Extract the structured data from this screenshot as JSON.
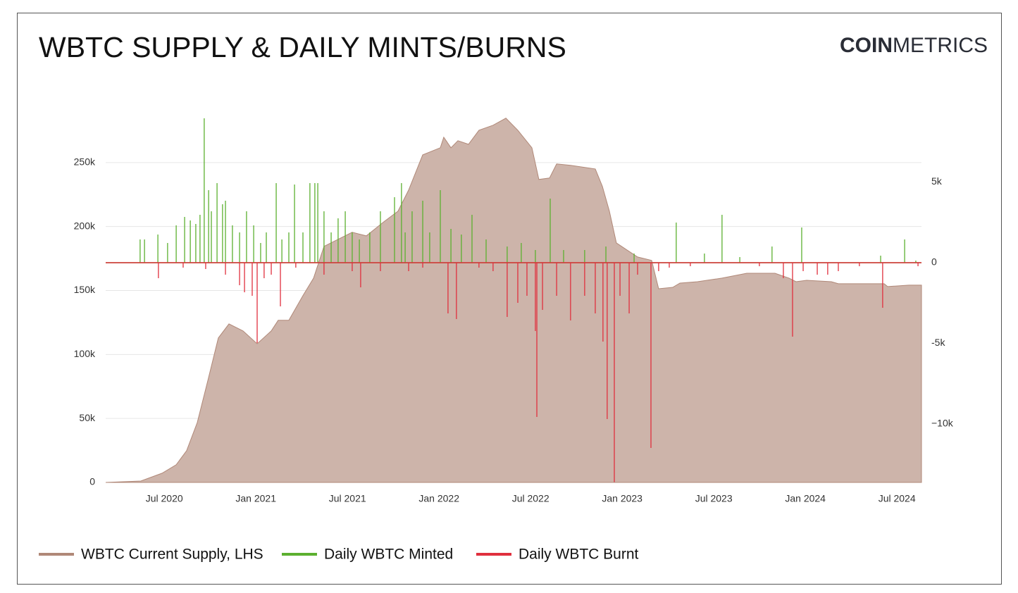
{
  "chart_data": {
    "type": "combo",
    "title": "WBTC SUPPLY & DAILY MINTS/BURNS",
    "logo": {
      "bold": "COIN",
      "light": "METRICS"
    },
    "xlim": [
      2020.18,
      2024.634
    ],
    "xticks": [
      {
        "value": 2020.5,
        "label": "Jul 2020"
      },
      {
        "value": 2021.0,
        "label": "Jan 2021"
      },
      {
        "value": 2021.5,
        "label": "Jul 2021"
      },
      {
        "value": 2022.0,
        "label": "Jan 2022"
      },
      {
        "value": 2022.5,
        "label": "Jul 2022"
      },
      {
        "value": 2023.0,
        "label": "Jan 2023"
      },
      {
        "value": 2023.5,
        "label": "Jul 2023"
      },
      {
        "value": 2024.0,
        "label": "Jan 2024"
      },
      {
        "value": 2024.5,
        "label": "Jul 2024"
      }
    ],
    "ylim": [
      0,
      300000
    ],
    "yticks": [
      0,
      {
        "value": 50000,
        "label": "50k"
      },
      {
        "value": 100000,
        "label": "100k"
      },
      {
        "value": 150000,
        "label": "150k"
      },
      {
        "value": 200000,
        "label": "200k"
      },
      {
        "value": 250000,
        "label": "250k"
      }
    ],
    "y2lim": [
      -13624,
      10175
    ],
    "y2ticks": [
      {
        "value": -10000,
        "label": "−10k"
      },
      {
        "value": -5000,
        "label": "-5k"
      },
      0,
      {
        "value": 5000,
        "label": "5k"
      }
    ],
    "grid": true,
    "series": [
      {
        "name": "WBTC Current Supply, LHS",
        "type": "area",
        "color": "#b08878",
        "fill": "#cdb4aa",
        "axis": "y",
        "x": [
          2020.18,
          2020.372,
          2020.488,
          2020.565,
          2020.622,
          2020.68,
          2020.738,
          2020.795,
          2020.853,
          2020.93,
          2021.007,
          2021.084,
          2021.122,
          2021.18,
          2021.257,
          2021.315,
          2021.372,
          2021.449,
          2021.526,
          2021.603,
          2021.699,
          2021.776,
          2021.834,
          2021.911,
          2022.007,
          2022.026,
          2022.065,
          2022.103,
          2022.161,
          2022.218,
          2022.295,
          2022.365,
          2022.43,
          2022.507,
          2022.545,
          2022.603,
          2022.642,
          2022.718,
          2022.853,
          2022.892,
          2022.93,
          2022.968,
          2023.026,
          2023.084,
          2023.161,
          2023.199,
          2023.276,
          2023.315,
          2023.411,
          2023.545,
          2023.68,
          2023.834,
          2023.911,
          2023.949,
          2024.007,
          2024.142,
          2024.18,
          2024.43,
          2024.449,
          2024.565,
          2024.634
        ],
        "values": [
          0,
          1100,
          7200,
          13800,
          24800,
          46800,
          79800,
          112900,
          123900,
          118400,
          108400,
          118400,
          126700,
          126700,
          146000,
          159700,
          184500,
          190000,
          195500,
          192700,
          203700,
          212000,
          228500,
          256000,
          261600,
          269800,
          261600,
          267100,
          264300,
          275300,
          279200,
          284700,
          275300,
          261600,
          236800,
          237900,
          248900,
          247800,
          245000,
          231300,
          212000,
          187200,
          181700,
          176200,
          173500,
          151400,
          152500,
          155800,
          156900,
          159700,
          163500,
          163500,
          159700,
          156900,
          158000,
          156900,
          155300,
          155300,
          153100,
          154200,
          154200
        ]
      },
      {
        "name": "Daily WBTC Minted",
        "type": "stem",
        "color": "#5cb030",
        "axis": "y2",
        "x": [
          2020.368,
          2020.392,
          2020.465,
          2020.518,
          2020.565,
          2020.611,
          2020.642,
          2020.672,
          2020.695,
          2020.718,
          2020.742,
          2020.757,
          2020.788,
          2020.818,
          2020.834,
          2020.872,
          2020.911,
          2020.949,
          2020.988,
          2021.026,
          2021.057,
          2021.111,
          2021.142,
          2021.18,
          2021.211,
          2021.257,
          2021.295,
          2021.322,
          2021.338,
          2021.372,
          2021.411,
          2021.449,
          2021.488,
          2021.526,
          2021.565,
          2021.622,
          2021.68,
          2021.757,
          2021.795,
          2021.815,
          2021.853,
          2021.911,
          2021.949,
          2022.007,
          2022.065,
          2022.122,
          2022.18,
          2022.257,
          2022.372,
          2022.449,
          2022.526,
          2022.607,
          2022.68,
          2022.795,
          2022.911,
          2023.065,
          2023.295,
          2023.449,
          2023.545,
          2023.642,
          2023.818,
          2023.98,
          2024.411,
          2024.542,
          2024.603
        ],
        "values": [
          1441,
          1441,
          1747,
          1223,
          2315,
          2839,
          2620,
          2402,
          2970,
          8952,
          4498,
          3188,
          4935,
          3625,
          3843,
          2315,
          1878,
          3188,
          2315,
          1223,
          1878,
          4935,
          1441,
          1878,
          4847,
          1878,
          4935,
          4935,
          4935,
          3188,
          1878,
          2751,
          3188,
          1878,
          1441,
          1878,
          3188,
          4061,
          4935,
          1878,
          3188,
          3843,
          1878,
          4498,
          2096,
          1747,
          2970,
          1441,
          1004,
          1223,
          786,
          3974,
          786,
          786,
          1004,
          568,
          2489,
          568,
          2970,
          349,
          1004,
          2184,
          437,
          1441,
          131
        ]
      },
      {
        "name": "Daily WBTC Burnt",
        "type": "stem",
        "color": "#e0303e",
        "axis": "y2",
        "x": [
          2020.468,
          2020.603,
          2020.726,
          2020.834,
          2020.911,
          2020.938,
          2020.98,
          2021.007,
          2021.045,
          2021.084,
          2021.134,
          2021.218,
          2021.372,
          2021.526,
          2021.572,
          2021.68,
          2021.834,
          2021.911,
          2022.049,
          2022.095,
          2022.218,
          2022.295,
          2022.372,
          2022.43,
          2022.48,
          2022.526,
          2022.534,
          2022.565,
          2022.642,
          2022.718,
          2022.795,
          2022.853,
          2022.895,
          2022.918,
          2022.957,
          2022.988,
          2023.038,
          2023.084,
          2023.157,
          2023.199,
          2023.257,
          2023.372,
          2023.749,
          2023.88,
          2023.93,
          2023.988,
          2024.065,
          2024.122,
          2024.18,
          2024.295,
          2024.422,
          2024.615
        ],
        "values": [
          -961,
          -306,
          -393,
          -742,
          -1397,
          -1834,
          -2052,
          -4978,
          -961,
          -742,
          -2708,
          -306,
          -742,
          -524,
          -1528,
          -524,
          -524,
          -306,
          -3144,
          -3494,
          -306,
          -524,
          -3363,
          -2489,
          -2052,
          -4236,
          -9564,
          -2926,
          -2052,
          -3581,
          -2052,
          -3144,
          -4891,
          -9695,
          -13600,
          -2052,
          -3144,
          -742,
          -11485,
          -524,
          -306,
          -218,
          -218,
          -961,
          -4585,
          -524,
          -742,
          -742,
          -524,
          -218,
          -2795,
          -218
        ]
      }
    ]
  }
}
